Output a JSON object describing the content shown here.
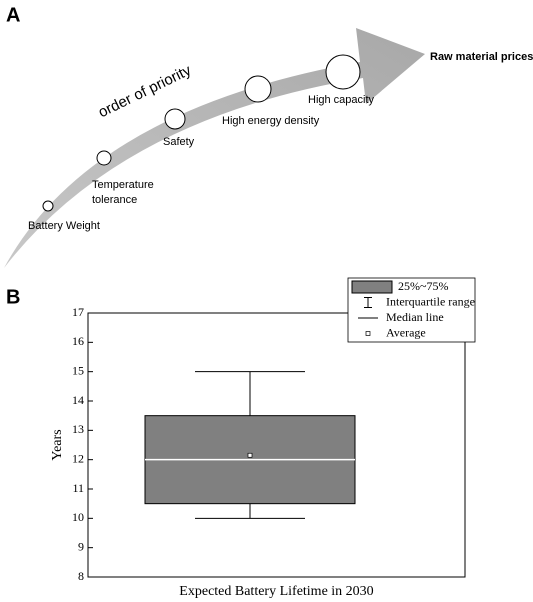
{
  "panel_a": {
    "label": "A",
    "arrow_label": "order of priority",
    "end_label": "Raw material prices",
    "items": [
      {
        "label_lines": [
          "Battery Weight"
        ]
      },
      {
        "label_lines": [
          "Temperature",
          "tolerance"
        ]
      },
      {
        "label_lines": [
          "Safety"
        ]
      },
      {
        "label_lines": [
          "High energy density"
        ]
      },
      {
        "label_lines": [
          "High capacity"
        ]
      }
    ]
  },
  "chart_data": {
    "type": "box",
    "panel_label": "B",
    "x_label": "Expected Battery Lifetime in 2030",
    "y_label": "Years",
    "boxes": [
      {
        "whislo": 10,
        "q1": 10.5,
        "med": 12,
        "q3": 13.5,
        "whishi": 15,
        "mean": 12.15
      }
    ],
    "color": "#808080",
    "median_color": "#ffffff",
    "ylim": [
      8,
      17
    ],
    "yticks": [
      8,
      9,
      10,
      11,
      12,
      13,
      14,
      15,
      16,
      17
    ],
    "legend": [
      "25%~75%",
      "Interquartile range",
      "Median line",
      "Average"
    ],
    "legend_position": "upper right"
  }
}
